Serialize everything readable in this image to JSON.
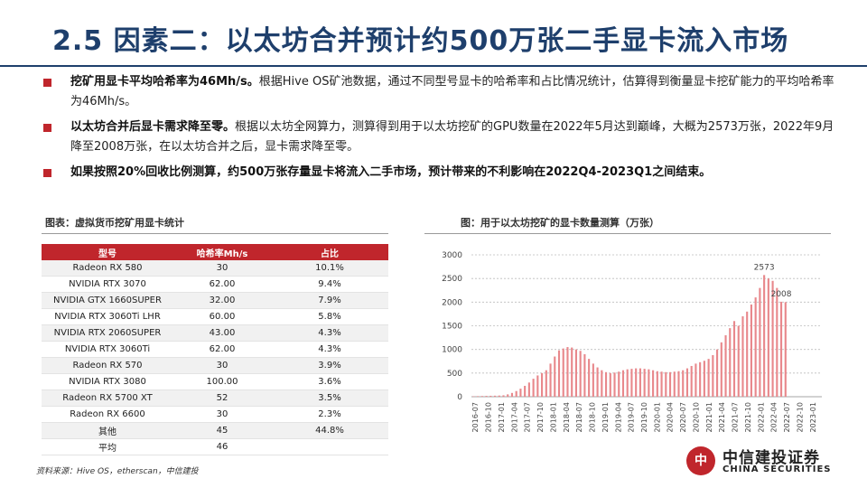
{
  "title": "2.5 因素二：以太坊合并预计约500万张二手显卡流入市场",
  "bullets": [
    {
      "bold": "挖矿用显卡平均哈希率为46Mh/s。",
      "text": "根据Hive OS矿池数据，通过不同型号显卡的哈希率和占比情况统计，估算得到衡量显卡挖矿能力的平均哈希率为46Mh/s。"
    },
    {
      "bold": "以太坊合并后显卡需求降至零。",
      "text": "根据以太坊全网算力，测算得到用于以太坊挖矿的GPU数量在2022年5月达到巅峰，大概为2573万张，2022年9月降至2008万张，在以太坊合并之后，显卡需求降至零。"
    },
    {
      "bold": "如果按照20%回收比例测算，约500万张存量显卡将流入二手市场，预计带来的不利影响在2022Q4-2023Q1之间结束。",
      "text": ""
    }
  ],
  "table_caption": "图表：虚拟货币挖矿用显卡统计",
  "table": {
    "headers": [
      "型号",
      "哈希率Mh/s",
      "占比"
    ],
    "rows": [
      [
        "Radeon RX 580",
        "30",
        "10.1%"
      ],
      [
        "NVIDIA RTX 3070",
        "62.00",
        "9.4%"
      ],
      [
        "NVIDIA GTX 1660SUPER",
        "32.00",
        "7.9%"
      ],
      [
        "NVIDIA RTX 3060Ti LHR",
        "60.00",
        "5.8%"
      ],
      [
        "NVIDIA RTX 2060SUPER",
        "43.00",
        "4.3%"
      ],
      [
        "NVIDIA RTX 3060Ti",
        "62.00",
        "4.3%"
      ],
      [
        "Radeon RX 570",
        "30",
        "3.9%"
      ],
      [
        "NVIDIA RTX 3080",
        "100.00",
        "3.6%"
      ],
      [
        "Radeon RX 5700 XT",
        "52",
        "3.5%"
      ],
      [
        "Radeon RX 6600",
        "30",
        "2.3%"
      ],
      [
        "其他",
        "45",
        "44.8%"
      ],
      [
        "平均",
        "46",
        ""
      ]
    ]
  },
  "chart_caption": "图：用于以太坊挖矿的显卡数量测算（万张）",
  "source": "资料来源：Hive OS，etherscan，中信建投",
  "logo": {
    "mark": "中",
    "cn": "中信建投证券",
    "en": "CHINA SECURITIES"
  },
  "colors": {
    "title": "#1e3f6c",
    "accent": "#c0262c",
    "bar": "#e8888c"
  },
  "chart_data": {
    "type": "bar",
    "title": "用于以太坊挖矿的显卡数量测算（万张）",
    "xlabel": "",
    "ylabel": "",
    "ylim": [
      0,
      3000
    ],
    "yticks": [
      0,
      500,
      1000,
      1500,
      2000,
      2500,
      3000
    ],
    "grid": true,
    "x_tick_labels": [
      "2016-07",
      "2016-10",
      "2017-01",
      "2017-04",
      "2017-07",
      "2017-10",
      "2018-01",
      "2018-04",
      "2018-07",
      "2018-10",
      "2019-01",
      "2019-04",
      "2019-07",
      "2019-10",
      "2020-01",
      "2020-04",
      "2020-07",
      "2020-10",
      "2021-01",
      "2021-04",
      "2021-07",
      "2021-10",
      "2022-01",
      "2022-04",
      "2022-07",
      "2022-10",
      "2023-01"
    ],
    "annotations": [
      {
        "label": "2573",
        "index": 68
      },
      {
        "label": "2008",
        "index": 72
      }
    ],
    "values": [
      10,
      12,
      15,
      18,
      20,
      22,
      25,
      30,
      50,
      80,
      120,
      170,
      230,
      300,
      380,
      450,
      500,
      560,
      700,
      850,
      980,
      1020,
      1050,
      1040,
      1000,
      970,
      900,
      800,
      700,
      620,
      560,
      520,
      500,
      510,
      530,
      560,
      580,
      590,
      600,
      600,
      590,
      580,
      560,
      540,
      530,
      520,
      520,
      530,
      540,
      560,
      600,
      650,
      700,
      730,
      760,
      800,
      880,
      1000,
      1150,
      1300,
      1450,
      1600,
      1500,
      1700,
      1800,
      1950,
      2100,
      2300,
      2573,
      2500,
      2450,
      2300,
      2008,
      2000,
      0,
      0,
      0,
      0,
      0,
      0,
      0,
      0
    ]
  }
}
